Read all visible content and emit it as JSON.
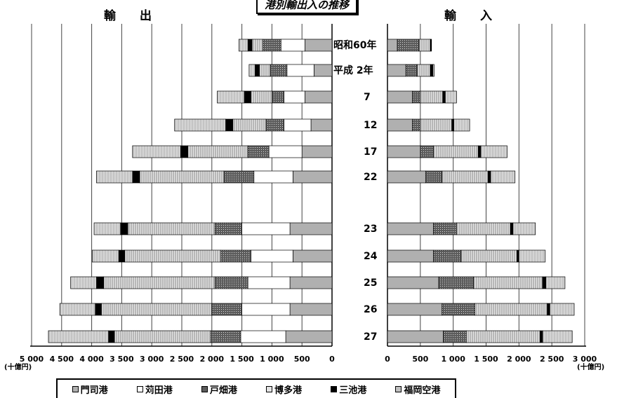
{
  "title": "港別輸出入の推移",
  "export_label": "輸出",
  "import_label": "輸入",
  "unit_left": "(十億円)",
  "unit_right": "(十億円)",
  "colors": {
    "門司港": "#b0b0b0",
    "苅田港": "#ffffff",
    "戸畑港": "#6e6e6e",
    "博多港": "#d2d2d2",
    "三池港": "#000000",
    "福岡空港": "#c8c8c8"
  },
  "legend": [
    {
      "label": "門司港",
      "key": "門司港"
    },
    {
      "label": "苅田港",
      "key": "苅田港"
    },
    {
      "label": "戸畑港",
      "key": "戸畑港"
    },
    {
      "label": "博多港",
      "key": "博多港"
    },
    {
      "label": "三池港",
      "key": "三池港"
    },
    {
      "label": "福岡空港",
      "key": "福岡空港"
    }
  ],
  "chart_data": {
    "type": "bar",
    "orientation": "horizontal-stacked-butterfly",
    "categories": [
      "昭和60年",
      "平成 2年",
      "7",
      "12",
      "17",
      "22",
      "23",
      "24",
      "25",
      "26",
      "27"
    ],
    "stack_order": [
      "門司港",
      "苅田港",
      "戸畑港",
      "博多港",
      "三池港",
      "福岡空港"
    ],
    "export": {
      "label": "輸出",
      "xlim": [
        5000,
        0
      ],
      "ticks": [
        "5 000",
        "4 500",
        "4 000",
        "3 500",
        "3 000",
        "2 500",
        "2 000",
        "1 500",
        "1 000",
        "500",
        "0"
      ],
      "series": [
        {
          "name": "門司港",
          "values": [
            450,
            300,
            450,
            350,
            500,
            650,
            700,
            650,
            700,
            700,
            770
          ]
        },
        {
          "name": "苅田港",
          "values": [
            400,
            450,
            350,
            450,
            550,
            650,
            800,
            700,
            700,
            800,
            750
          ]
        },
        {
          "name": "戸畑港",
          "values": [
            300,
            280,
            200,
            300,
            350,
            500,
            450,
            500,
            550,
            500,
            500
          ]
        },
        {
          "name": "博多港",
          "values": [
            180,
            180,
            350,
            550,
            1000,
            1400,
            1450,
            1600,
            1850,
            1840,
            1600
          ]
        },
        {
          "name": "三池港",
          "values": [
            70,
            70,
            110,
            120,
            120,
            120,
            120,
            100,
            120,
            100,
            100
          ]
        },
        {
          "name": "福岡空港",
          "values": [
            150,
            100,
            450,
            850,
            800,
            600,
            440,
            440,
            430,
            590,
            1000
          ]
        }
      ]
    },
    "import": {
      "label": "輸入",
      "xlim": [
        0,
        3000
      ],
      "ticks": [
        "0",
        "500",
        "1 000",
        "1 500",
        "2 000",
        "2 500",
        "3 000"
      ],
      "series": [
        {
          "name": "門司港",
          "values": [
            150,
            280,
            380,
            380,
            500,
            580,
            700,
            700,
            780,
            830,
            850
          ]
        },
        {
          "name": "苅田港",
          "values": [
            0,
            0,
            0,
            0,
            0,
            0,
            0,
            0,
            0,
            0,
            0
          ]
        },
        {
          "name": "戸畑港",
          "values": [
            330,
            170,
            120,
            120,
            200,
            250,
            350,
            420,
            530,
            500,
            350
          ]
        },
        {
          "name": "博多港",
          "values": [
            170,
            200,
            340,
            480,
            680,
            700,
            820,
            850,
            1050,
            1100,
            1120
          ]
        },
        {
          "name": "三池港",
          "values": [
            20,
            40,
            40,
            30,
            40,
            40,
            40,
            30,
            50,
            40,
            40
          ]
        },
        {
          "name": "福岡空港",
          "values": [
            0,
            20,
            170,
            240,
            400,
            370,
            340,
            400,
            290,
            370,
            450
          ]
        }
      ]
    }
  }
}
